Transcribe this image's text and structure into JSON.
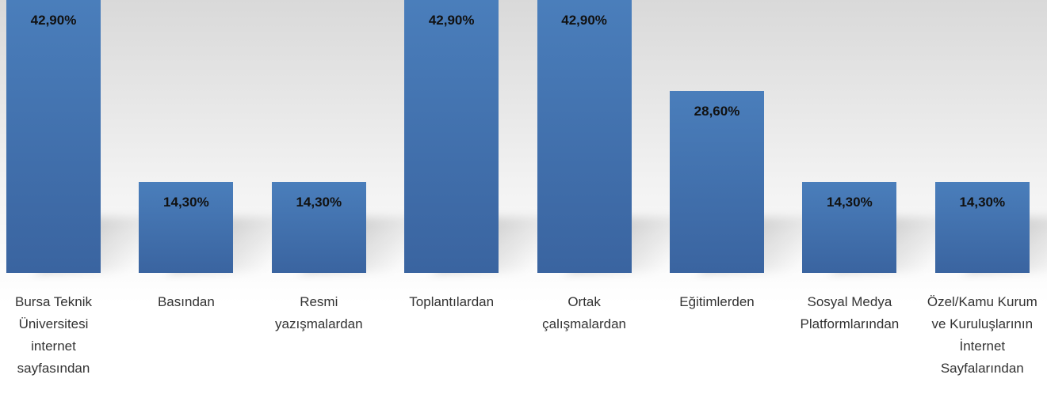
{
  "chart_data": {
    "type": "bar",
    "categories": [
      "Bursa Teknik Üniversitesi internet sayfasından",
      "Basından",
      "Resmi yazışmalardan",
      "Toplantılardan",
      "Ortak çalışmalardan",
      "Eğitimlerden",
      "Sosyal Medya Platformlarından",
      "Özel/Kamu Kurum ve Kuruluşlarının İnternet Sayfalarından"
    ],
    "values": [
      42.9,
      14.3,
      14.3,
      42.9,
      42.9,
      28.6,
      14.3,
      14.3
    ],
    "value_labels": [
      "42,90%",
      "14,30%",
      "14,30%",
      "42,90%",
      "42,90%",
      "28,60%",
      "14,30%",
      "14,30%"
    ],
    "color": "#4a7ebb"
  }
}
